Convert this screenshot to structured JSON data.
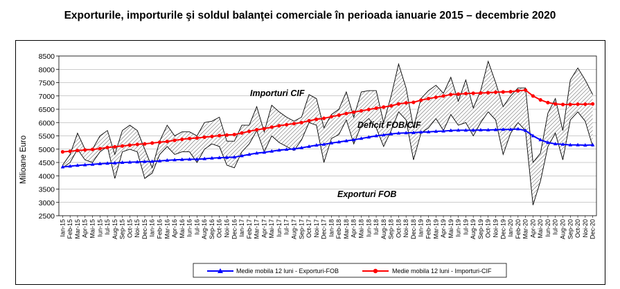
{
  "title": "Exporturile, importurile şi soldul balanţei comerciale în perioada ianuarie 2015 – decembrie 2020",
  "chart_data": {
    "type": "line",
    "ylabel": "Milioane Euro",
    "ylim": [
      2500,
      8500
    ],
    "yticks": [
      2500,
      3000,
      3500,
      4000,
      4500,
      5000,
      5500,
      6000,
      6500,
      7000,
      7500,
      8000,
      8500
    ],
    "grid": true,
    "categories": [
      "Ian-15",
      "Feb-15",
      "Mar-15",
      "Apr-15",
      "Mai-15",
      "Iun-15",
      "Iul-15",
      "Aug-15",
      "Sep-15",
      "Oct-15",
      "Noi-15",
      "Dec-15",
      "Ian-16",
      "Feb-16",
      "Mar-16",
      "Apr-16",
      "Mai-16",
      "Iun-16",
      "Iul-16",
      "Aug-16",
      "Sep-16",
      "Oct-16",
      "Noi-16",
      "Dec-16",
      "Ian-17",
      "Feb-17",
      "Mar-17",
      "Apr-17",
      "Mai-17",
      "Iun-17",
      "Iul-17",
      "Aug-17",
      "Sep-17",
      "Oct-17",
      "Noi-17",
      "Dec-17",
      "Ian-18",
      "Feb-18",
      "Mar-18",
      "Apr-18",
      "Mai-18",
      "Iun-18",
      "Iul-18",
      "Aug-18",
      "Sep-18",
      "Oct-18",
      "Noi-18",
      "Dec-18",
      "Ian-19",
      "Feb-19",
      "Mar-19",
      "Apr-19",
      "Mai-19",
      "Iun-19",
      "Iul-19",
      "Aug-19",
      "Sep-19",
      "Oct-19",
      "Noi-19",
      "Dec-19",
      "Ian-20",
      "Feb-20",
      "Mar-20",
      "Apr-20",
      "Mai-20",
      "Iun-20",
      "Iul-20",
      "Aug-20",
      "Sep-20",
      "Oct-20",
      "Noi-20",
      "Dec-20"
    ],
    "series": [
      {
        "name": "Importuri CIF",
        "role": "monthly",
        "color": "#000000",
        "values": [
          4400,
          4800,
          5600,
          5000,
          5000,
          5500,
          5700,
          4800,
          5700,
          5900,
          5700,
          5000,
          4300,
          5300,
          5900,
          5500,
          5650,
          5650,
          5500,
          6000,
          6050,
          6200,
          5300,
          5300,
          5900,
          5900,
          6600,
          5650,
          6650,
          6400,
          6200,
          6050,
          6200,
          7050,
          6900,
          5800,
          6300,
          6500,
          7150,
          6200,
          7150,
          7200,
          7200,
          6000,
          7000,
          8200,
          7300,
          5800,
          6900,
          7200,
          7400,
          7100,
          7700,
          6800,
          7600,
          6550,
          7200,
          8300,
          7500,
          6600,
          7000,
          7300,
          7300,
          4500,
          4850,
          6350,
          6900,
          5700,
          7600,
          8050,
          7600,
          7050
        ]
      },
      {
        "name": "Exporturi FOB",
        "role": "monthly",
        "color": "#000000",
        "values": [
          4300,
          4500,
          5000,
          4600,
          4500,
          4900,
          5100,
          3900,
          4900,
          5000,
          4900,
          3900,
          4100,
          4800,
          5100,
          4800,
          4900,
          4900,
          4500,
          5000,
          5200,
          5100,
          4400,
          4300,
          4900,
          5200,
          5700,
          4900,
          5500,
          5250,
          5100,
          4950,
          5350,
          6000,
          5900,
          4500,
          5400,
          5550,
          6100,
          5200,
          5900,
          6150,
          5800,
          5100,
          5700,
          6400,
          6100,
          4600,
          5600,
          5800,
          6150,
          5700,
          6300,
          5900,
          6000,
          5500,
          6000,
          6400,
          6100,
          4800,
          5600,
          6000,
          5700,
          2900,
          3800,
          5100,
          5600,
          4600,
          6100,
          6400,
          6050,
          5100
        ]
      },
      {
        "name": "Medie mobila 12 luni - Exporturi-FOB",
        "role": "moving-average",
        "color": "#0000ff",
        "values": [
          4330,
          4360,
          4390,
          4410,
          4430,
          4450,
          4470,
          4480,
          4500,
          4510,
          4520,
          4530,
          4540,
          4560,
          4580,
          4600,
          4610,
          4620,
          4620,
          4640,
          4660,
          4680,
          4690,
          4700,
          4750,
          4800,
          4850,
          4880,
          4920,
          4960,
          4990,
          5010,
          5050,
          5100,
          5150,
          5180,
          5230,
          5270,
          5310,
          5350,
          5400,
          5450,
          5500,
          5530,
          5570,
          5600,
          5610,
          5620,
          5640,
          5650,
          5670,
          5680,
          5700,
          5710,
          5710,
          5710,
          5720,
          5720,
          5730,
          5740,
          5740,
          5760,
          5700,
          5500,
          5350,
          5250,
          5200,
          5180,
          5160,
          5160,
          5150,
          5160
        ]
      },
      {
        "name": "Medie mobila 12 luni - Importuri-CIF",
        "role": "moving-average",
        "color": "#ff0000",
        "values": [
          4900,
          4920,
          4950,
          4970,
          4990,
          5020,
          5060,
          5090,
          5120,
          5150,
          5180,
          5200,
          5230,
          5260,
          5290,
          5330,
          5370,
          5400,
          5420,
          5450,
          5480,
          5510,
          5530,
          5550,
          5610,
          5670,
          5730,
          5770,
          5830,
          5880,
          5920,
          5960,
          6000,
          6070,
          6120,
          6160,
          6220,
          6280,
          6340,
          6390,
          6440,
          6490,
          6540,
          6580,
          6630,
          6700,
          6740,
          6760,
          6840,
          6900,
          6950,
          7000,
          7050,
          7070,
          7090,
          7100,
          7110,
          7120,
          7140,
          7150,
          7160,
          7190,
          7220,
          7000,
          6850,
          6750,
          6700,
          6680,
          6680,
          6690,
          6690,
          6700
        ]
      }
    ],
    "annotations": [
      {
        "text": "Importuri CIF",
        "anchor": "above area, 2017"
      },
      {
        "text": "Deficit FOB/CIF",
        "anchor": "hatched band, 2018"
      },
      {
        "text": "Exporturi FOB",
        "anchor": "below area, 2018"
      }
    ],
    "legend": {
      "position": "bottom",
      "entries": [
        "Medie mobila 12 luni - Exporturi-FOB",
        "Medie mobila 12 luni - Importuri-CIF"
      ]
    }
  }
}
